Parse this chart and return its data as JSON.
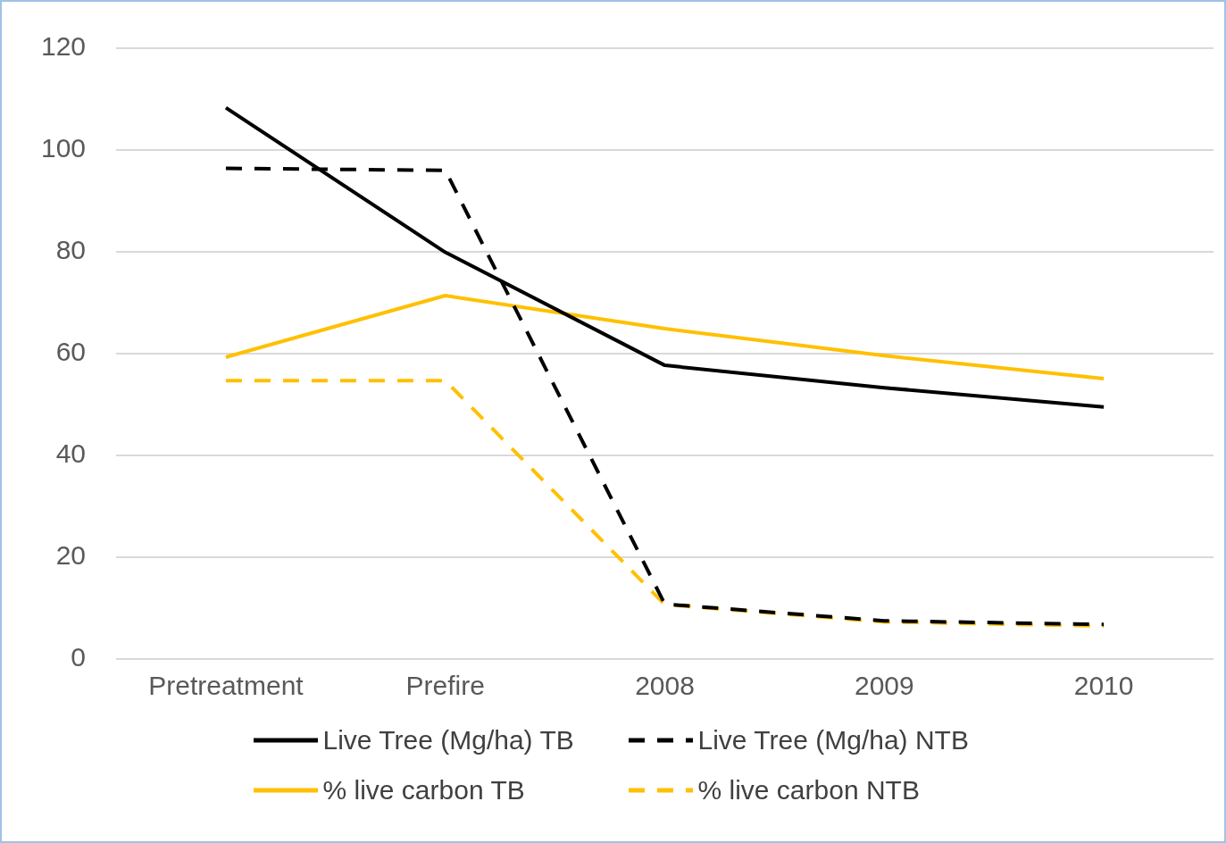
{
  "chart_data": {
    "type": "line",
    "categories": [
      "Pretreatment",
      "Prefire",
      "2008",
      "2009",
      "2010"
    ],
    "series": [
      {
        "name": "Live Tree (Mg/ha) TB",
        "color": "#000000",
        "line_style": "solid",
        "values": [
          108.3,
          79.9,
          57.7,
          53.3,
          49.5
        ]
      },
      {
        "name": "Live Tree (Mg/ha) NTB",
        "color": "#000000",
        "line_style": "dashed",
        "values": [
          96.4,
          96,
          10.8,
          7.5,
          6.8
        ]
      },
      {
        "name": "% live carbon TB",
        "color": "#ffc000",
        "line_style": "solid",
        "values": [
          59.3,
          71.4,
          64.9,
          59.6,
          55.1
        ]
      },
      {
        "name": "% live carbon NTB",
        "color": "#ffc000",
        "line_style": "dashed",
        "values": [
          54.7,
          54.7,
          10.7,
          7.3,
          6.5
        ]
      }
    ],
    "ylim": [
      0,
      120
    ],
    "yticks": [
      0,
      20,
      40,
      60,
      80,
      100,
      120
    ],
    "grid": "y",
    "legend": "bottom",
    "marker": "none"
  }
}
